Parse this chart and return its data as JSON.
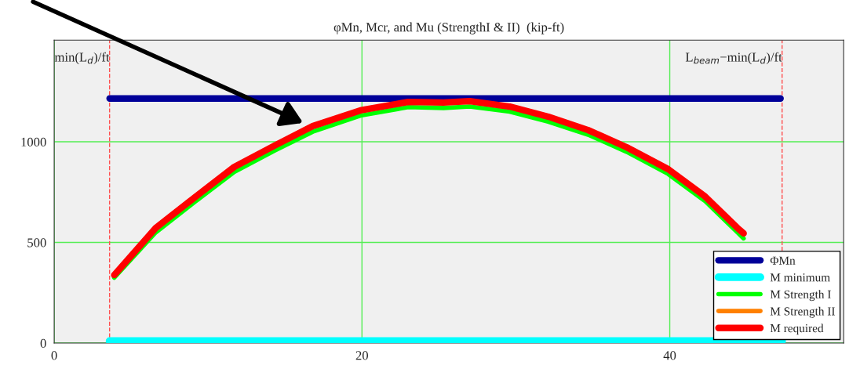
{
  "chart_data": {
    "type": "line",
    "title": "φMn, Mcr, and Mu (StrengthI & II)  (kip-ft)",
    "xlim": [
      0,
      51.3
    ],
    "ylim": [
      0,
      1505
    ],
    "xticks": [
      0,
      20,
      40
    ],
    "yticks": [
      0,
      500,
      1000
    ],
    "grid": true,
    "legend": "bottom right",
    "series": [
      {
        "name": "ΦMn",
        "color": "#000099",
        "x": [
          3.6,
          47.2
        ],
        "values": [
          1215,
          1215
        ]
      },
      {
        "name": "M minimum",
        "color": "#00ffff",
        "x": [
          3.6,
          47.3
        ],
        "values": [
          10,
          10
        ]
      },
      {
        "name": "M Strength I",
        "color": "#00ff00",
        "x": [
          3.9,
          6.6,
          9.2,
          11.7,
          14.3,
          16.8,
          19.9,
          23.0,
          25.3,
          27.0,
          29.6,
          32.1,
          34.7,
          37.2,
          39.9,
          42.3,
          44.4,
          44.8
        ],
        "values": [
          325,
          550,
          705,
          850,
          955,
          1050,
          1130,
          1172,
          1168,
          1175,
          1150,
          1100,
          1035,
          950,
          840,
          705,
          550,
          520
        ]
      },
      {
        "name": "M Strength II",
        "color": "#ff8000"
      },
      {
        "name": "M required",
        "color": "#ff0000",
        "x": [
          3.9,
          6.6,
          9.2,
          11.7,
          14.3,
          16.8,
          19.9,
          23.0,
          25.3,
          27.0,
          29.6,
          32.1,
          34.7,
          37.2,
          39.9,
          42.3,
          44.4,
          44.8
        ],
        "values": [
          338,
          572,
          728,
          875,
          980,
          1078,
          1156,
          1198,
          1195,
          1202,
          1175,
          1125,
          1058,
          973,
          864,
          728,
          572,
          545
        ]
      }
    ],
    "ref_lines": [
      {
        "axis": "x",
        "value": 3.6,
        "label": "min(L$_{d}$)/ft",
        "color": "#ff5050",
        "line_style": "dashed"
      },
      {
        "axis": "x",
        "value": 47.3,
        "label": "L$_{beam}$−min(L$_{d}$)/ft",
        "color": "#ff5050",
        "line_style": "dashed"
      }
    ]
  }
}
